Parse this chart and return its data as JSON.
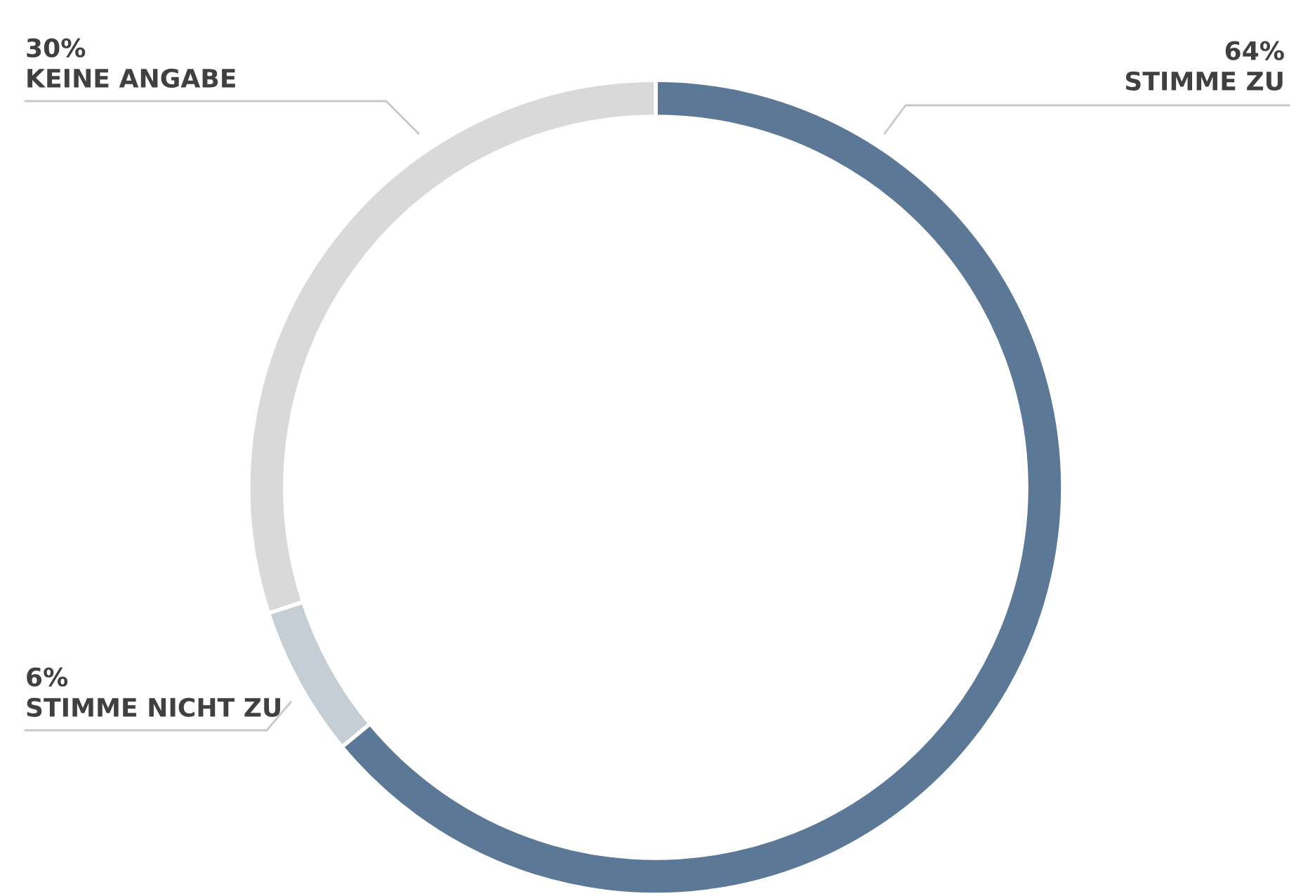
{
  "chart_data": {
    "type": "donut",
    "categories": [
      "STIMME ZU",
      "STIMME NICHT ZU",
      "KEINE ANGABE"
    ],
    "values": [
      64,
      6,
      30
    ],
    "value_labels": [
      "64%",
      "6%",
      "30%"
    ],
    "colors": [
      "#5b7896",
      "#c5ced4",
      "#d9d9d9"
    ]
  }
}
